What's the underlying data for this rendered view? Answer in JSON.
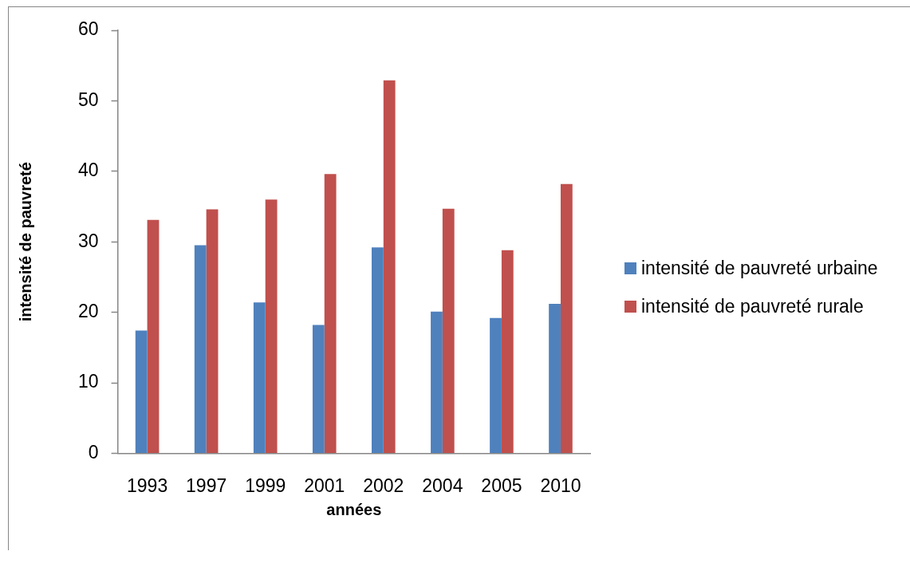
{
  "chart_data": {
    "type": "bar",
    "xlabel": "années",
    "ylabel": "intensité de pauvreté",
    "categories": [
      "1993",
      "1997",
      "1999",
      "2001",
      "2002",
      "2004",
      "2005",
      "2010"
    ],
    "series": [
      {
        "name": "intensité de pauvreté urbaine",
        "color": "#4f81bd",
        "values": [
          17.4,
          29.5,
          21.4,
          18.2,
          29.2,
          20.1,
          19.2,
          21.2
        ]
      },
      {
        "name": "intensité de pauvreté rurale",
        "color": "#c0504d",
        "values": [
          33.1,
          34.6,
          36.0,
          39.6,
          52.9,
          34.7,
          28.8,
          38.2
        ]
      }
    ],
    "ylim": [
      0,
      60
    ],
    "yticks": [
      0,
      10,
      20,
      30,
      40,
      50,
      60
    ],
    "legend": "right"
  }
}
